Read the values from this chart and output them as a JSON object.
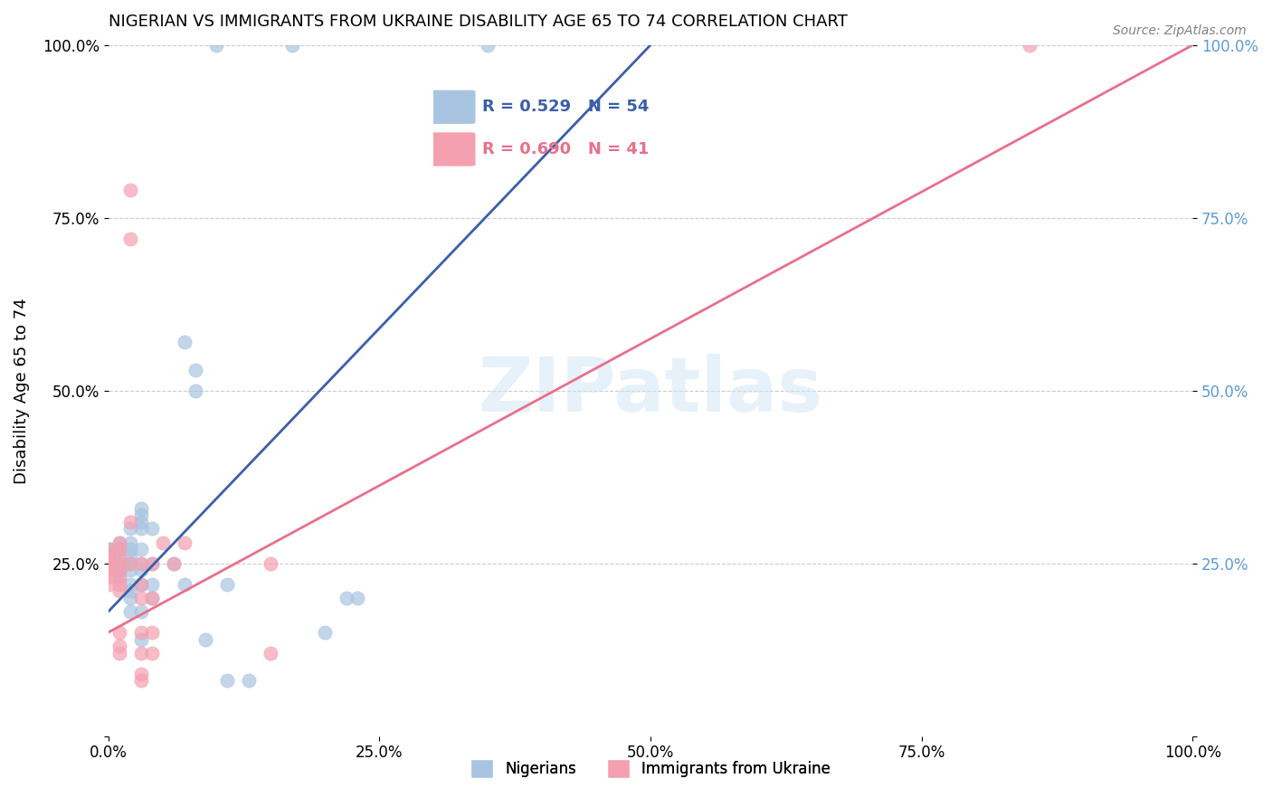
{
  "title": "NIGERIAN VS IMMIGRANTS FROM UKRAINE DISABILITY AGE 65 TO 74 CORRELATION CHART",
  "source": "Source: ZipAtlas.com",
  "xlabel": "",
  "ylabel": "Disability Age 65 to 74",
  "xlim": [
    0,
    1.0
  ],
  "ylim": [
    0,
    1.0
  ],
  "xticks": [
    0.0,
    0.25,
    0.5,
    0.75,
    1.0
  ],
  "yticks": [
    0.0,
    0.25,
    0.5,
    0.75,
    1.0
  ],
  "xtick_labels": [
    "0.0%",
    "25.0%",
    "50.0%",
    "75.0%",
    "100.0%"
  ],
  "ytick_labels": [
    "",
    "25.0%",
    "50.0%",
    "75.0%",
    "100.0%"
  ],
  "watermark": "ZIPatlas",
  "legend_labels": [
    "Nigerians",
    "Immigrants from Ukraine"
  ],
  "blue_R": 0.529,
  "blue_N": 54,
  "pink_R": 0.69,
  "pink_N": 41,
  "blue_color": "#a8c4e0",
  "pink_color": "#f4a0b0",
  "blue_line_color": "#3a5fa8",
  "pink_line_color": "#e8708a",
  "right_tick_color": "#5b9bd5",
  "blue_scatter": [
    [
      0.0,
      0.27
    ],
    [
      0.0,
      0.27
    ],
    [
      0.01,
      0.27
    ],
    [
      0.01,
      0.28
    ],
    [
      0.01,
      0.27
    ],
    [
      0.0,
      0.26
    ],
    [
      0.0,
      0.26
    ],
    [
      0.0,
      0.25
    ],
    [
      0.0,
      0.25
    ],
    [
      0.01,
      0.25
    ],
    [
      0.01,
      0.25
    ],
    [
      0.01,
      0.24
    ],
    [
      0.01,
      0.24
    ],
    [
      0.01,
      0.24
    ],
    [
      0.01,
      0.23
    ],
    [
      0.02,
      0.3
    ],
    [
      0.02,
      0.28
    ],
    [
      0.02,
      0.27
    ],
    [
      0.02,
      0.26
    ],
    [
      0.02,
      0.25
    ],
    [
      0.02,
      0.24
    ],
    [
      0.02,
      0.22
    ],
    [
      0.02,
      0.21
    ],
    [
      0.02,
      0.2
    ],
    [
      0.02,
      0.18
    ],
    [
      0.03,
      0.33
    ],
    [
      0.03,
      0.32
    ],
    [
      0.03,
      0.31
    ],
    [
      0.03,
      0.3
    ],
    [
      0.03,
      0.27
    ],
    [
      0.03,
      0.25
    ],
    [
      0.03,
      0.24
    ],
    [
      0.03,
      0.22
    ],
    [
      0.03,
      0.18
    ],
    [
      0.03,
      0.14
    ],
    [
      0.04,
      0.3
    ],
    [
      0.04,
      0.25
    ],
    [
      0.04,
      0.22
    ],
    [
      0.04,
      0.2
    ],
    [
      0.06,
      0.25
    ],
    [
      0.07,
      0.22
    ],
    [
      0.1,
      1.0
    ],
    [
      0.17,
      1.0
    ],
    [
      0.35,
      1.0
    ],
    [
      0.07,
      0.57
    ],
    [
      0.08,
      0.53
    ],
    [
      0.08,
      0.5
    ],
    [
      0.09,
      0.14
    ],
    [
      0.11,
      0.22
    ],
    [
      0.11,
      0.08
    ],
    [
      0.13,
      0.08
    ],
    [
      0.2,
      0.15
    ],
    [
      0.22,
      0.2
    ],
    [
      0.23,
      0.2
    ]
  ],
  "pink_scatter": [
    [
      0.0,
      0.27
    ],
    [
      0.0,
      0.26
    ],
    [
      0.0,
      0.26
    ],
    [
      0.0,
      0.25
    ],
    [
      0.0,
      0.25
    ],
    [
      0.0,
      0.24
    ],
    [
      0.0,
      0.24
    ],
    [
      0.0,
      0.23
    ],
    [
      0.0,
      0.22
    ],
    [
      0.01,
      0.28
    ],
    [
      0.01,
      0.27
    ],
    [
      0.01,
      0.26
    ],
    [
      0.01,
      0.25
    ],
    [
      0.01,
      0.24
    ],
    [
      0.01,
      0.23
    ],
    [
      0.01,
      0.22
    ],
    [
      0.01,
      0.21
    ],
    [
      0.01,
      0.15
    ],
    [
      0.01,
      0.13
    ],
    [
      0.01,
      0.12
    ],
    [
      0.02,
      0.79
    ],
    [
      0.02,
      0.72
    ],
    [
      0.02,
      0.31
    ],
    [
      0.02,
      0.25
    ],
    [
      0.03,
      0.25
    ],
    [
      0.03,
      0.22
    ],
    [
      0.03,
      0.2
    ],
    [
      0.03,
      0.15
    ],
    [
      0.03,
      0.12
    ],
    [
      0.03,
      0.09
    ],
    [
      0.03,
      0.08
    ],
    [
      0.04,
      0.25
    ],
    [
      0.04,
      0.2
    ],
    [
      0.04,
      0.15
    ],
    [
      0.04,
      0.12
    ],
    [
      0.05,
      0.28
    ],
    [
      0.06,
      0.25
    ],
    [
      0.07,
      0.28
    ],
    [
      0.85,
      1.0
    ],
    [
      0.15,
      0.25
    ],
    [
      0.15,
      0.12
    ]
  ],
  "blue_trendline": [
    [
      0.0,
      0.18
    ],
    [
      0.5,
      1.0
    ]
  ],
  "pink_trendline": [
    [
      0.0,
      0.15
    ],
    [
      1.0,
      1.0
    ]
  ]
}
